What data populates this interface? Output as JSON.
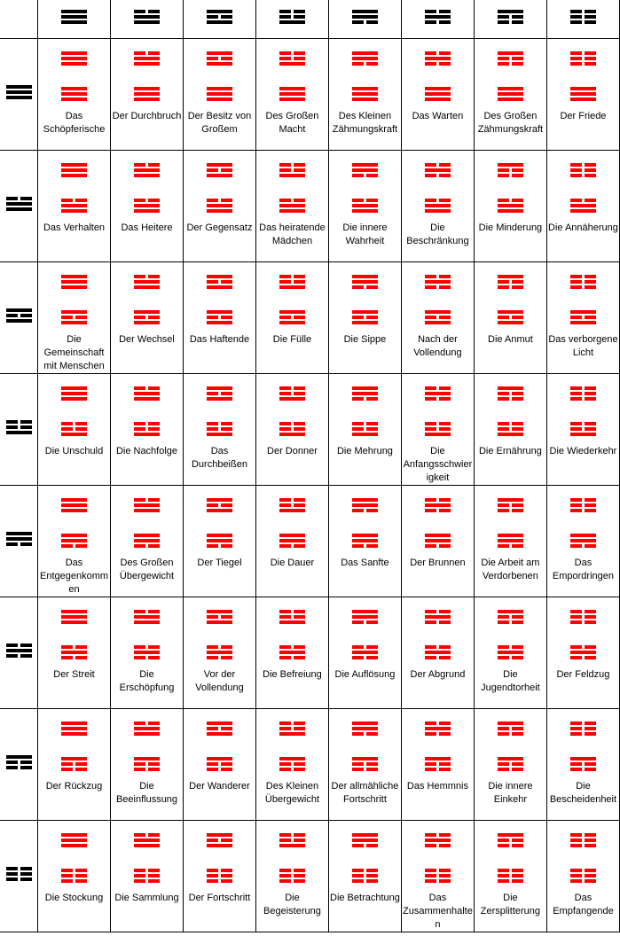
{
  "colors": {
    "header_trigram": "#000000",
    "hexagram": "#ff0000",
    "grid": "#000000"
  },
  "trigrams": {
    "qian": [
      1,
      1,
      1
    ],
    "dui": [
      0,
      1,
      1
    ],
    "li": [
      1,
      0,
      1
    ],
    "zhen": [
      0,
      0,
      1
    ],
    "xun": [
      1,
      1,
      0
    ],
    "kan": [
      0,
      1,
      0
    ],
    "gen": [
      1,
      0,
      0
    ],
    "kun": [
      0,
      0,
      0
    ]
  },
  "columns": [
    "qian",
    "dui",
    "li",
    "zhen",
    "xun",
    "kan",
    "gen",
    "kun"
  ],
  "rows": [
    {
      "trigram": "qian",
      "names": [
        "Das Schöpferische",
        "Der Durchbruch",
        "Der Besitz von Großem",
        "Des Großen Macht",
        "Des Kleinen Zähmungskraft",
        "Das Warten",
        "Des Großen Zähmungskraft",
        "Der Friede"
      ]
    },
    {
      "trigram": "dui",
      "names": [
        "Das Verhalten",
        "Das Heitere",
        "Der Gegensatz",
        "Das heiratende Mädchen",
        "Die innere Wahrheit",
        "Die Beschränkung",
        "Die Minderung",
        "Die Annäherung"
      ]
    },
    {
      "trigram": "li",
      "names": [
        "Die Gemeinschaft mit Menschen",
        "Der Wechsel",
        "Das Haftende",
        "Die Fülle",
        "Die Sippe",
        "Nach der Vollendung",
        "Die Anmut",
        "Das verborgene Licht"
      ]
    },
    {
      "trigram": "zhen",
      "names": [
        "Die Unschuld",
        "Die Nachfolge",
        "Das Durchbeißen",
        "Der Donner",
        "Die Mehrung",
        "Die Anfangsschwierigkeit",
        "Die Ernährung",
        "Die Wiederkehr"
      ]
    },
    {
      "trigram": "xun",
      "names": [
        "Das Entgegenkommen",
        "Des Großen Übergewicht",
        "Der Tiegel",
        "Die Dauer",
        "Das Sanfte",
        "Der Brunnen",
        "Die Arbeit am Verdorbenen",
        "Das Empordringen"
      ]
    },
    {
      "trigram": "kan",
      "names": [
        "Der Streit",
        "Die Erschöpfung",
        "Vor der Vollendung",
        "Die Befreiung",
        "Die Auflösung",
        "Der Abgrund",
        "Die Jugendtorheit",
        "Der Feldzug"
      ]
    },
    {
      "trigram": "gen",
      "names": [
        "Der Rückzug",
        "Die Beeinflussung",
        "Der Wanderer",
        "Des Kleinen Übergewicht",
        "Der allmähliche Fortschritt",
        "Das Hemmnis",
        "Die innere Einkehr",
        "Die Bescheidenheit"
      ]
    },
    {
      "trigram": "kun",
      "names": [
        "Die Stockung",
        "Die Sammlung",
        "Der Fortschritt",
        "Die Begeisterung",
        "Die Betrachtung",
        "Das Zusammenhalten",
        "Die Zersplitterung",
        "Das Empfangende"
      ]
    }
  ]
}
